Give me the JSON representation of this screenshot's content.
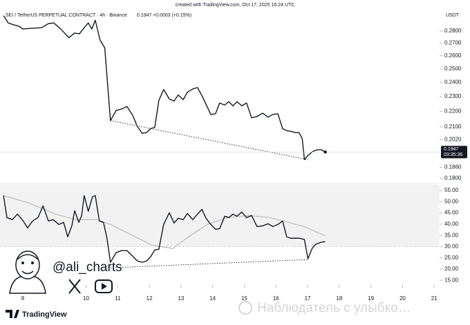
{
  "created": "created with TradingView.com, Oct 17, 2025 16:24 UTC",
  "watermark": "@ali_charts",
  "brand": "TradingView",
  "overlay_text": "Наблюдатель с улыбко…",
  "chart_data": [
    {
      "type": "line",
      "title": "SEI / TetherUS PERPETUAL CONTRACT · 4h · Binance",
      "price": "0.1947",
      "change": "+0.0003 (+0.15%)",
      "currency": "USDT",
      "countdown": "03:35:36",
      "log_scale": true,
      "xlim": [
        7.28,
        21.17
      ],
      "ylim": [
        0.1775,
        0.2961
      ],
      "yticks": [
        {
          "value": 0.28,
          "label": "0.2800"
        },
        {
          "value": 0.27,
          "label": "0.2700"
        },
        {
          "value": 0.26,
          "label": "0.2600"
        },
        {
          "value": 0.25,
          "label": "0.2500"
        },
        {
          "value": 0.24,
          "label": "0.2400"
        },
        {
          "value": 0.23,
          "label": "0.2300"
        },
        {
          "value": 0.22,
          "label": "0.2200"
        },
        {
          "value": 0.21,
          "label": "0.2100"
        },
        {
          "value": 0.202,
          "label": "0.2020"
        },
        {
          "value": 0.186,
          "label": "0.1860"
        },
        {
          "value": 0.18,
          "label": "0.1800"
        }
      ],
      "series": [
        {
          "color": "#131722",
          "style": "solid",
          "marker_last": true,
          "x": [
            7.39,
            7.54,
            7.72,
            7.89,
            8.0,
            8.26,
            8.59,
            8.81,
            8.98,
            9.2,
            9.46,
            9.63,
            9.79,
            9.94,
            10.07,
            10.18,
            10.29,
            10.44,
            10.59,
            10.77,
            10.95,
            11.12,
            11.29,
            11.47,
            11.62,
            11.77,
            11.91,
            12.04,
            12.17,
            12.3,
            12.45,
            12.63,
            12.78,
            12.91,
            13.07,
            13.2,
            13.37,
            13.52,
            13.66,
            13.79,
            13.94,
            14.09,
            14.22,
            14.38,
            14.51,
            14.64,
            14.77,
            14.92,
            15.07,
            15.23,
            15.4,
            15.58,
            15.75,
            15.9,
            16.06,
            16.21,
            16.34,
            16.47,
            16.62,
            16.73,
            16.83,
            16.9,
            17.01,
            17.14,
            17.25,
            17.41,
            17.56
          ],
          "values": [
            0.2933,
            0.2869,
            0.2852,
            0.284,
            0.2817,
            0.2823,
            0.2828,
            0.2863,
            0.2869,
            0.2817,
            0.2744,
            0.2783,
            0.2777,
            0.2828,
            0.2869,
            0.2817,
            0.2892,
            0.2727,
            0.2662,
            0.214,
            0.2206,
            0.2215,
            0.2233,
            0.2175,
            0.2102,
            0.206,
            0.2064,
            0.2089,
            0.2097,
            0.2274,
            0.2349,
            0.2283,
            0.2269,
            0.2311,
            0.2279,
            0.233,
            0.2353,
            0.2363,
            0.2306,
            0.2247,
            0.218,
            0.2184,
            0.2256,
            0.2242,
            0.2265,
            0.2237,
            0.2265,
            0.2237,
            0.2256,
            0.2158,
            0.2166,
            0.2188,
            0.2162,
            0.218,
            0.2184,
            0.2089,
            0.2076,
            0.2072,
            0.2064,
            0.2064,
            0.2027,
            0.1903,
            0.1927,
            0.1947,
            0.1958,
            0.1962,
            0.1947
          ]
        },
        {
          "color": "#131722",
          "style": "dotted",
          "x": [
            10.77,
            17.01
          ],
          "values": [
            0.214,
            0.1903
          ]
        }
      ]
    },
    {
      "type": "line",
      "xlim": [
        7.28,
        21.17
      ],
      "ylim": [
        12.9,
        57.5
      ],
      "band": [
        30,
        70
      ],
      "yticks": [
        {
          "value": 55,
          "label": "55.00"
        },
        {
          "value": 50,
          "label": "50.00"
        },
        {
          "value": 45,
          "label": "45.00"
        },
        {
          "value": 40,
          "label": "40.00"
        },
        {
          "value": 35,
          "label": "35.00"
        },
        {
          "value": 30,
          "label": "30.00"
        },
        {
          "value": 25,
          "label": "25.00"
        },
        {
          "value": 20,
          "label": "20.00"
        },
        {
          "value": 15,
          "label": "15.00"
        }
      ],
      "xticks": [
        8,
        10,
        11,
        12,
        13,
        14,
        15,
        16,
        17,
        18,
        19,
        20,
        21
      ],
      "series": [
        {
          "color": "#c3c3c3",
          "style": "solid",
          "x": [
            7.39,
            8.15,
            9.03,
            9.68,
            10.34,
            10.77,
            11.43,
            12.08,
            12.74,
            13.17,
            13.83,
            14.48,
            15.14,
            15.79,
            16.23,
            16.89,
            17.32,
            17.56
          ],
          "values": [
            52.76,
            49.69,
            44.48,
            42.02,
            42.02,
            39.88,
            35.28,
            30.67,
            29.14,
            33.74,
            39.88,
            42.94,
            43.87,
            42.94,
            41.41,
            38.96,
            36.2,
            34.97
          ]
        },
        {
          "color": "#131722",
          "style": "solid",
          "x": [
            7.39,
            7.5,
            7.67,
            7.83,
            8.0,
            8.15,
            8.31,
            8.48,
            8.64,
            8.81,
            8.96,
            9.14,
            9.29,
            9.42,
            9.55,
            9.64,
            9.77,
            9.86,
            9.94,
            10.07,
            10.2,
            10.29,
            10.42,
            10.55,
            10.66,
            10.77,
            10.95,
            11.12,
            11.29,
            11.47,
            11.62,
            11.77,
            11.91,
            12.04,
            12.17,
            12.3,
            12.45,
            12.63,
            12.78,
            12.91,
            13.07,
            13.2,
            13.37,
            13.52,
            13.66,
            13.79,
            13.94,
            14.09,
            14.22,
            14.38,
            14.51,
            14.64,
            14.77,
            14.92,
            15.07,
            15.23,
            15.4,
            15.58,
            15.75,
            15.9,
            16.06,
            16.21,
            16.34,
            16.47,
            16.62,
            16.73,
            16.83,
            16.9,
            17.01,
            17.14,
            17.25,
            17.41,
            17.56
          ],
          "values": [
            52.76,
            42.94,
            42.02,
            44.48,
            41.72,
            38.34,
            41.41,
            42.94,
            48.16,
            41.41,
            42.02,
            39.88,
            40.8,
            34.36,
            39.26,
            46.01,
            40.8,
            43.87,
            52.76,
            45.71,
            52.15,
            52.76,
            41.41,
            40.8,
            33.74,
            23.01,
            27.3,
            28.22,
            28.22,
            25.77,
            23.62,
            23.01,
            23.62,
            25.46,
            28.53,
            28.83,
            39.88,
            45.09,
            40.49,
            42.64,
            42.02,
            44.79,
            42.02,
            44.48,
            46.63,
            42.64,
            39.88,
            37.73,
            38.04,
            43.56,
            42.94,
            44.48,
            43.56,
            45.4,
            42.94,
            43.87,
            38.96,
            39.26,
            40.18,
            38.96,
            39.88,
            41.41,
            34.36,
            33.74,
            33.74,
            33.74,
            33.44,
            33.13,
            24.54,
            29.14,
            30.98,
            31.9,
            32.21
          ]
        },
        {
          "color": "#131722",
          "style": "dotted",
          "x": [
            10.77,
            17.01
          ],
          "values": [
            20.55,
            24.23
          ]
        }
      ]
    }
  ]
}
